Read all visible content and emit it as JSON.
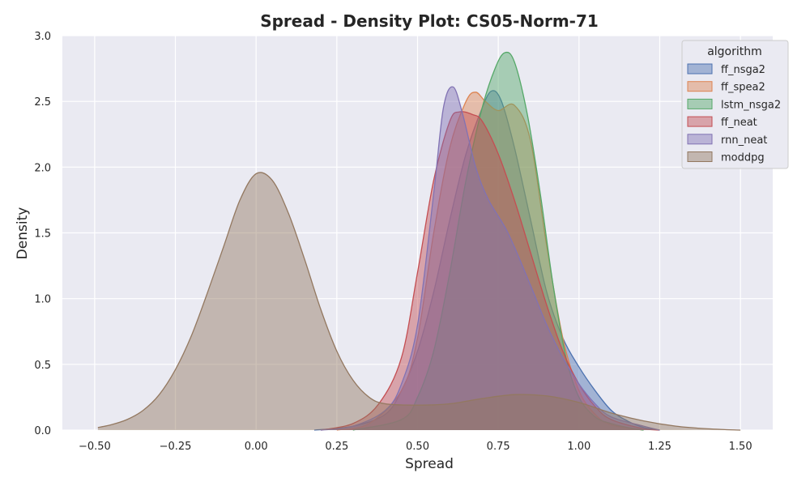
{
  "chart_data": {
    "type": "area",
    "title": "Spread - Density Plot: CS05-Norm-71",
    "xlabel": "Spread",
    "ylabel": "Density",
    "xlim": [
      -0.6,
      1.6
    ],
    "ylim": [
      0,
      3.0
    ],
    "xticks": [
      -0.5,
      -0.25,
      0.0,
      0.25,
      0.5,
      0.75,
      1.0,
      1.25,
      1.5
    ],
    "xtick_labels": [
      "−0.50",
      "−0.25",
      "0.00",
      "0.25",
      "0.50",
      "0.75",
      "1.00",
      "1.25",
      "1.50"
    ],
    "yticks": [
      0.0,
      0.5,
      1.0,
      1.5,
      2.0,
      2.5,
      3.0
    ],
    "ytick_labels": [
      "0.0",
      "0.5",
      "1.0",
      "1.5",
      "2.0",
      "2.5",
      "3.0"
    ],
    "grid": true,
    "background": "#eaeaf2",
    "legend": {
      "title": "algorithm",
      "placement": "top-right"
    },
    "series": [
      {
        "name": "ff_nsga2",
        "color": "#4c72b0",
        "points": [
          [
            0.18,
            0.0
          ],
          [
            0.3,
            0.03
          ],
          [
            0.4,
            0.12
          ],
          [
            0.45,
            0.3
          ],
          [
            0.5,
            0.6
          ],
          [
            0.55,
            1.05
          ],
          [
            0.6,
            1.6
          ],
          [
            0.65,
            2.1
          ],
          [
            0.7,
            2.45
          ],
          [
            0.73,
            2.58
          ],
          [
            0.76,
            2.5
          ],
          [
            0.8,
            2.15
          ],
          [
            0.85,
            1.6
          ],
          [
            0.9,
            1.05
          ],
          [
            0.95,
            0.7
          ],
          [
            1.0,
            0.48
          ],
          [
            1.05,
            0.3
          ],
          [
            1.1,
            0.15
          ],
          [
            1.15,
            0.07
          ],
          [
            1.2,
            0.02
          ],
          [
            1.25,
            0.0
          ]
        ]
      },
      {
        "name": "ff_spea2",
        "color": "#dd8452",
        "points": [
          [
            0.25,
            0.0
          ],
          [
            0.35,
            0.05
          ],
          [
            0.45,
            0.3
          ],
          [
            0.5,
            0.7
          ],
          [
            0.55,
            1.5
          ],
          [
            0.6,
            2.15
          ],
          [
            0.65,
            2.5
          ],
          [
            0.68,
            2.57
          ],
          [
            0.71,
            2.5
          ],
          [
            0.75,
            2.43
          ],
          [
            0.8,
            2.47
          ],
          [
            0.85,
            2.2
          ],
          [
            0.9,
            1.4
          ],
          [
            0.95,
            0.7
          ],
          [
            1.0,
            0.3
          ],
          [
            1.05,
            0.12
          ],
          [
            1.1,
            0.04
          ],
          [
            1.2,
            0.0
          ]
        ]
      },
      {
        "name": "lstm_nsga2",
        "color": "#55a868",
        "points": [
          [
            0.3,
            0.0
          ],
          [
            0.45,
            0.08
          ],
          [
            0.5,
            0.25
          ],
          [
            0.55,
            0.6
          ],
          [
            0.6,
            1.2
          ],
          [
            0.65,
            1.9
          ],
          [
            0.7,
            2.45
          ],
          [
            0.74,
            2.75
          ],
          [
            0.77,
            2.87
          ],
          [
            0.8,
            2.8
          ],
          [
            0.84,
            2.4
          ],
          [
            0.88,
            1.8
          ],
          [
            0.92,
            1.1
          ],
          [
            0.96,
            0.55
          ],
          [
            1.0,
            0.25
          ],
          [
            1.05,
            0.1
          ],
          [
            1.1,
            0.05
          ],
          [
            1.15,
            0.02
          ],
          [
            1.2,
            0.0
          ]
        ]
      },
      {
        "name": "ff_neat",
        "color": "#c44e52",
        "points": [
          [
            0.2,
            0.0
          ],
          [
            0.3,
            0.05
          ],
          [
            0.38,
            0.2
          ],
          [
            0.45,
            0.55
          ],
          [
            0.5,
            1.2
          ],
          [
            0.55,
            1.9
          ],
          [
            0.6,
            2.35
          ],
          [
            0.63,
            2.42
          ],
          [
            0.67,
            2.4
          ],
          [
            0.7,
            2.35
          ],
          [
            0.75,
            2.1
          ],
          [
            0.8,
            1.75
          ],
          [
            0.85,
            1.35
          ],
          [
            0.9,
            0.95
          ],
          [
            0.95,
            0.6
          ],
          [
            1.0,
            0.35
          ],
          [
            1.05,
            0.18
          ],
          [
            1.1,
            0.08
          ],
          [
            1.2,
            0.01
          ],
          [
            1.25,
            0.0
          ]
        ]
      },
      {
        "name": "rnn_neat",
        "color": "#8172b3",
        "points": [
          [
            0.2,
            0.0
          ],
          [
            0.3,
            0.03
          ],
          [
            0.4,
            0.15
          ],
          [
            0.45,
            0.35
          ],
          [
            0.5,
            0.8
          ],
          [
            0.55,
            1.8
          ],
          [
            0.58,
            2.45
          ],
          [
            0.61,
            2.61
          ],
          [
            0.64,
            2.4
          ],
          [
            0.68,
            2.0
          ],
          [
            0.72,
            1.75
          ],
          [
            0.78,
            1.5
          ],
          [
            0.85,
            1.1
          ],
          [
            0.9,
            0.8
          ],
          [
            0.95,
            0.55
          ],
          [
            1.0,
            0.35
          ],
          [
            1.05,
            0.2
          ],
          [
            1.1,
            0.1
          ],
          [
            1.2,
            0.03
          ],
          [
            1.25,
            0.0
          ]
        ]
      },
      {
        "name": "moddpg",
        "color": "#937860",
        "points": [
          [
            -0.49,
            0.02
          ],
          [
            -0.45,
            0.04
          ],
          [
            -0.4,
            0.08
          ],
          [
            -0.35,
            0.15
          ],
          [
            -0.3,
            0.27
          ],
          [
            -0.25,
            0.46
          ],
          [
            -0.2,
            0.72
          ],
          [
            -0.15,
            1.05
          ],
          [
            -0.1,
            1.4
          ],
          [
            -0.05,
            1.75
          ],
          [
            0.0,
            1.95
          ],
          [
            0.05,
            1.9
          ],
          [
            0.1,
            1.65
          ],
          [
            0.15,
            1.3
          ],
          [
            0.2,
            0.92
          ],
          [
            0.25,
            0.6
          ],
          [
            0.3,
            0.38
          ],
          [
            0.35,
            0.25
          ],
          [
            0.4,
            0.2
          ],
          [
            0.5,
            0.19
          ],
          [
            0.6,
            0.2
          ],
          [
            0.7,
            0.24
          ],
          [
            0.8,
            0.27
          ],
          [
            0.9,
            0.26
          ],
          [
            1.0,
            0.21
          ],
          [
            1.1,
            0.13
          ],
          [
            1.2,
            0.07
          ],
          [
            1.3,
            0.03
          ],
          [
            1.4,
            0.01
          ],
          [
            1.5,
            0.0
          ]
        ]
      }
    ]
  }
}
